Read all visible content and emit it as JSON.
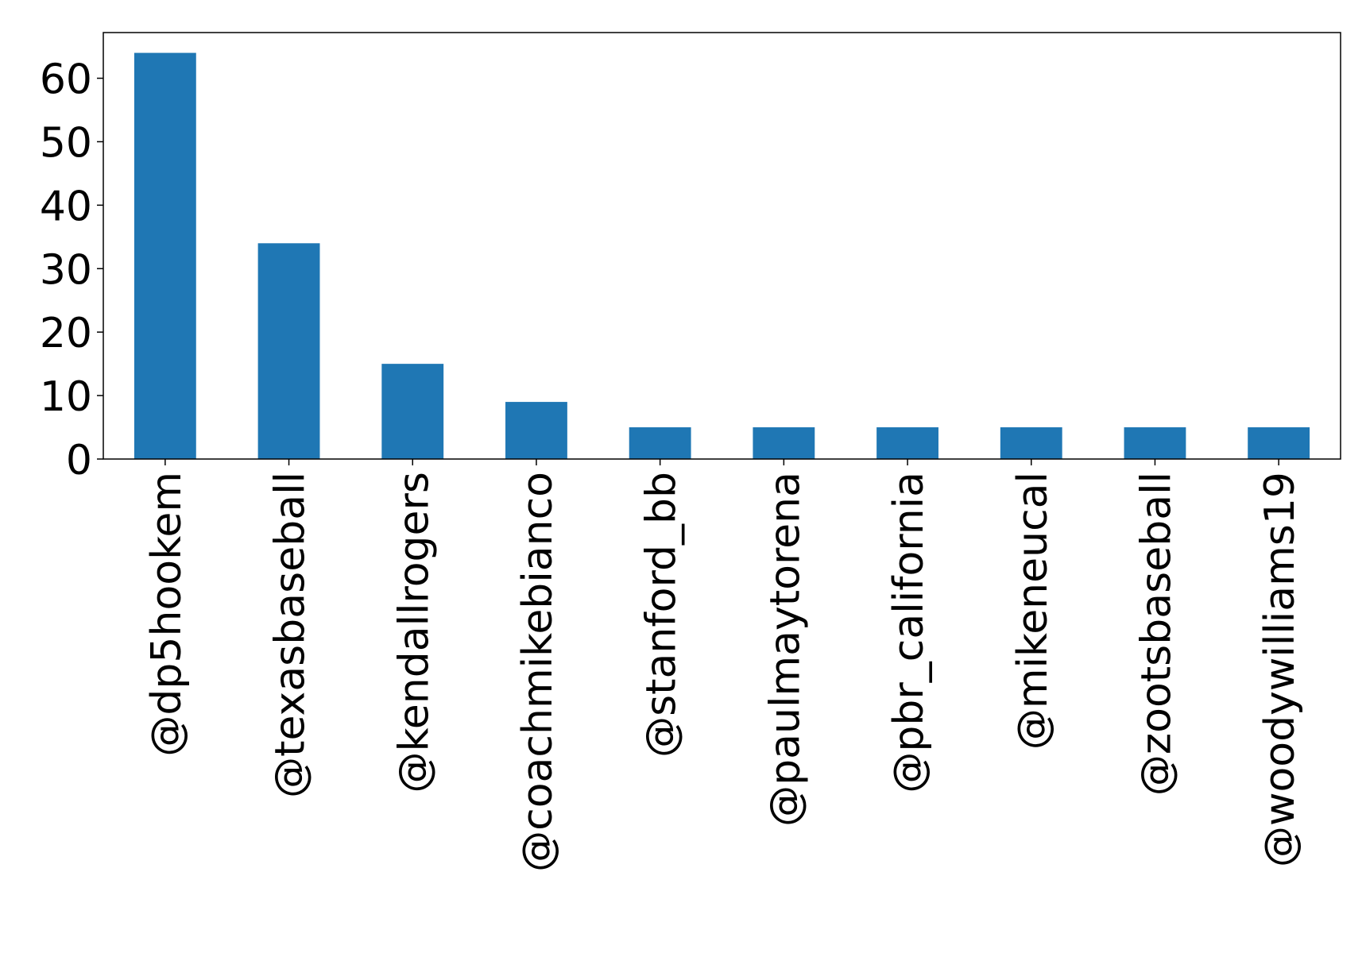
{
  "chart_data": {
    "type": "bar",
    "categories": [
      "@dp5hookem",
      "@texasbaseball",
      "@kendallrogers",
      "@coachmikebianco",
      "@stanford_bb",
      "@paulmaytorena",
      "@pbr_california",
      "@mikeneucal",
      "@zootsbaseball",
      "@woodywilliams19"
    ],
    "values": [
      64,
      34,
      15,
      9,
      5,
      5,
      5,
      5,
      5,
      5
    ],
    "color": "#1f77b4",
    "ylim": [
      0,
      67.2
    ],
    "yticks": [
      0,
      10,
      20,
      30,
      40,
      50,
      60
    ],
    "grid": false
  }
}
